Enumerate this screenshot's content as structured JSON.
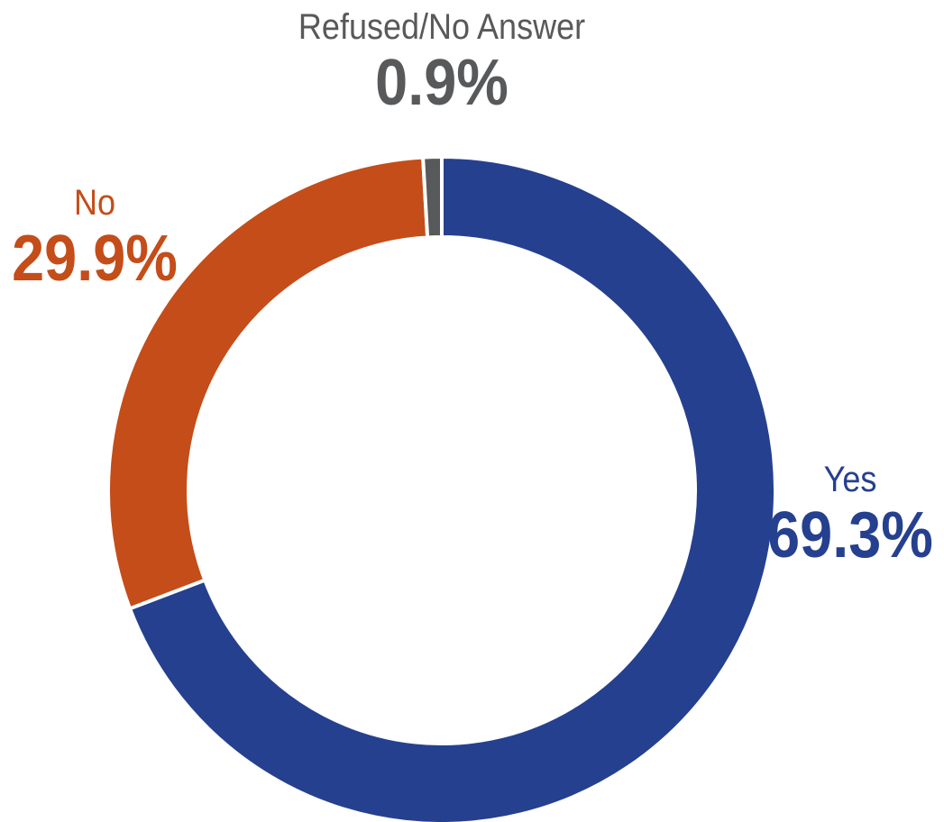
{
  "chart_data": {
    "type": "pie",
    "variant": "donut",
    "start": "12 o'clock",
    "direction": "clockwise",
    "slices": [
      {
        "label": "Yes",
        "value": 69.3,
        "value_label": "69.3%",
        "color": "#25408F"
      },
      {
        "label": "No",
        "value": 29.9,
        "value_label": "29.9%",
        "color": "#C44D19"
      },
      {
        "label": "Refused/No Answer",
        "value": 0.9,
        "value_label": "0.9%",
        "color": "#58595B"
      }
    ]
  }
}
